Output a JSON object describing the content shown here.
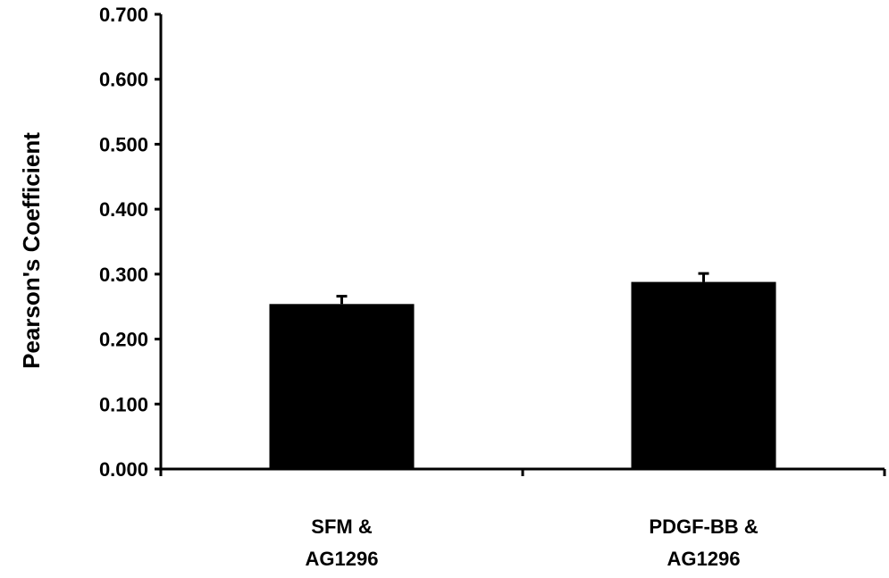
{
  "chart_data": {
    "type": "bar",
    "title": "",
    "xlabel": "",
    "ylabel": "Pearson's Coefficient",
    "ylim": [
      0,
      0.7
    ],
    "yticks": [
      "0.000",
      "0.100",
      "0.200",
      "0.300",
      "0.400",
      "0.500",
      "0.600",
      "0.700"
    ],
    "categories": [
      [
        "SFM &",
        "AG1296"
      ],
      [
        "PDGF-BB &",
        "AG1296"
      ]
    ],
    "values": [
      0.254,
      0.288
    ],
    "errors": [
      0.012,
      0.013
    ],
    "grid": false,
    "legend": "none",
    "bar_color": "#000000"
  }
}
